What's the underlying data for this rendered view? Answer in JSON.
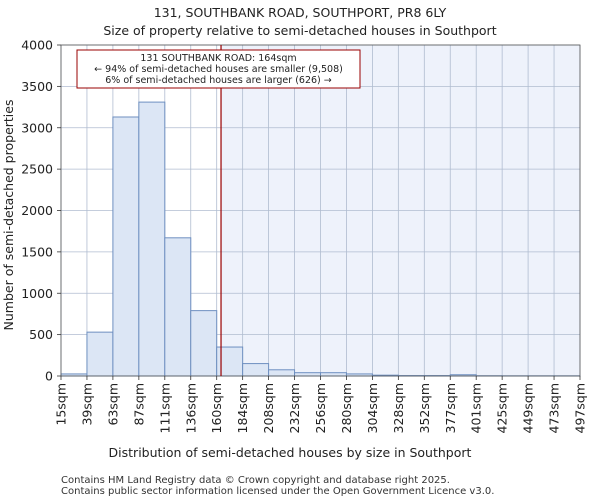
{
  "chart_data": {
    "type": "bar",
    "title": "131, SOUTHBANK ROAD, SOUTHPORT, PR8 6LY",
    "subtitle": "Size of property relative to semi-detached houses in Southport",
    "xlabel": "Distribution of semi-detached houses by size in Southport",
    "ylabel": "Number of semi-detached properties",
    "ylim": [
      0,
      4000
    ],
    "yticks": [
      0,
      500,
      1000,
      1500,
      2000,
      2500,
      3000,
      3500,
      4000
    ],
    "bin_edges": [
      15,
      39,
      63,
      87,
      111,
      136,
      160,
      184,
      208,
      232,
      256,
      280,
      304,
      328,
      352,
      377,
      401,
      425,
      449,
      473,
      497
    ],
    "tick_labels": [
      "15sqm",
      "39sqm",
      "63sqm",
      "87sqm",
      "111sqm",
      "136sqm",
      "160sqm",
      "184sqm",
      "208sqm",
      "232sqm",
      "256sqm",
      "280sqm",
      "304sqm",
      "328sqm",
      "352sqm",
      "377sqm",
      "401sqm",
      "425sqm",
      "449sqm",
      "473sqm",
      "497sqm"
    ],
    "values": [
      25,
      530,
      3130,
      3310,
      1670,
      790,
      350,
      150,
      75,
      40,
      40,
      25,
      10,
      5,
      5,
      15,
      3,
      2,
      2,
      2
    ],
    "marker": {
      "value": 164,
      "color": "#990000",
      "lines": [
        "131 SOUTHBANK ROAD: 164sqm",
        "← 94% of semi-detached houses are smaller (9,508)",
        "6% of semi-detached houses are larger (626) →"
      ]
    },
    "grid": true,
    "colors": {
      "bar_fill": "#dce6f5",
      "bar_stroke": "#6e8fc0",
      "highlight_fill": "#eef2fb",
      "grid": "#b0bcd0"
    }
  },
  "footer": {
    "line1": "Contains HM Land Registry data © Crown copyright and database right 2025.",
    "line2": "Contains public sector information licensed under the Open Government Licence v3.0."
  }
}
